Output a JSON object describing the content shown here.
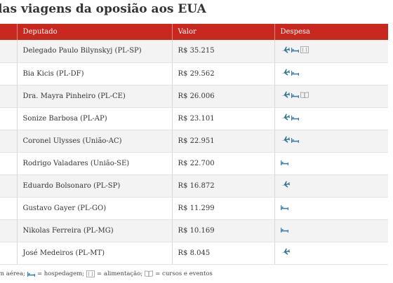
{
  "title": "las viagens da oposião aos EUA",
  "table": {
    "headers": [
      "",
      "Deputado",
      "Valor",
      "Despesa"
    ],
    "rows": [
      {
        "deputado": "Delegado Paulo Bilynskyj (PL-SP)",
        "valor": "R$ 35.215",
        "despesa": [
          "plane-icon",
          "bed-icon",
          "meal-icon"
        ]
      },
      {
        "deputado": "Bia Kicis (PL-DF)",
        "valor": "R$ 29.562",
        "despesa": [
          "plane-icon",
          "bed-icon"
        ]
      },
      {
        "deputado": "Dra. Mayra Pinheiro (PL-CE)",
        "valor": "R$ 26.006",
        "despesa": [
          "plane-icon",
          "bed-icon",
          "book-icon"
        ]
      },
      {
        "deputado": "Sonize Barbosa (PL-AP)",
        "valor": "R$ 23.101",
        "despesa": [
          "plane-icon",
          "bed-icon"
        ]
      },
      {
        "deputado": "Coronel Ulysses (União-AC)",
        "valor": "R$ 22.951",
        "despesa": [
          "plane-icon",
          "bed-icon"
        ]
      },
      {
        "deputado": "Rodrigo Valadares (União-SE)",
        "valor": "R$ 22.700",
        "despesa": [
          "bed-icon"
        ]
      },
      {
        "deputado": "Eduardo Bolsonaro (PL-SP)",
        "valor": "R$ 16.872",
        "despesa": [
          "plane-icon"
        ]
      },
      {
        "deputado": "Gustavo Gayer (PL-GO)",
        "valor": "R$ 11.299",
        "despesa": [
          "bed-icon"
        ]
      },
      {
        "deputado": "Nikolas Ferreira (PL-MG)",
        "valor": "R$ 10.169",
        "despesa": [
          "bed-icon"
        ]
      },
      {
        "deputado": "José Medeiros (PL-MT)",
        "valor": "R$ 8.045",
        "despesa": [
          "plane-icon"
        ]
      }
    ]
  },
  "legend": {
    "lead": "m aérea;",
    "hospedagem": "= hospedagem;",
    "alimentacao": "= alimentação;",
    "cursos": "= cursos e eventos"
  },
  "colors": {
    "header": "#c8281e",
    "plane": "#2f6e8c",
    "bed": "#3a7fa6"
  }
}
